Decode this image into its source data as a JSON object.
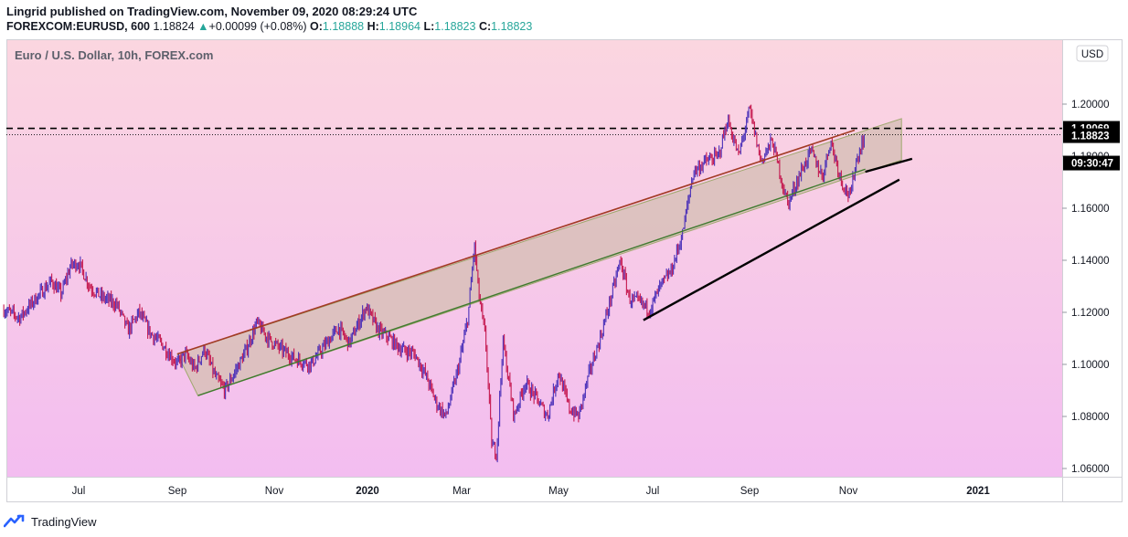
{
  "header": {
    "published": "Lingrid published on TradingView.com, November 09, 2020 08:29:24 UTC",
    "symbol": "FOREXCOM:EURUSD, 600",
    "last": "1.18824",
    "change": "+0.00099 (+0.08%)",
    "o_label": "O:",
    "o_value": "1.18888",
    "h_label": "H:",
    "h_value": "1.18964",
    "l_label": "L:",
    "l_value": "1.18823",
    "c_label": "C:",
    "c_value": "1.18823"
  },
  "chart_title": "Euro / U.S. Dollar, 10h, FOREX.com",
  "currency_label": "USD",
  "footer": {
    "brand": "TradingView"
  },
  "colors": {
    "bg_top": "#fbd6e0",
    "bg_bottom": "#f3bdf0",
    "candle_up": "#4a2fb8",
    "candle_down": "#c4174e",
    "channel_fill": "#d8c0b8",
    "channel_top": "#a23a24",
    "channel_bottom": "#3f7a2e",
    "trendline": "#000000",
    "price_tag": "#000000"
  },
  "chart_data": {
    "type": "line",
    "title": "Euro / U.S. Dollar, 10h, FOREX.com",
    "ylim": [
      1.056,
      1.214
    ],
    "y_ticks": [
      1.06,
      1.08,
      1.1,
      1.12,
      1.14,
      1.16,
      1.18,
      1.2
    ],
    "y_tick_labels": [
      "1.06000",
      "1.08000",
      "1.10000",
      "1.12000",
      "1.14000",
      "1.16000",
      "1.18000",
      "1.20000"
    ],
    "x_ticks": [
      "Jul",
      "Sep",
      "Nov",
      "2020",
      "Mar",
      "May",
      "Jul",
      "Sep",
      "Nov",
      "2021"
    ],
    "x_tick_dates": [
      "2019-07-01",
      "2019-09-01",
      "2019-11-01",
      "2020-01-01",
      "2020-03-01",
      "2020-05-01",
      "2020-07-01",
      "2020-09-01",
      "2020-11-01",
      "2021-01-01"
    ],
    "xlim": [
      "2019-05-15",
      "2021-03-01"
    ],
    "series": [
      {
        "values": [
          [
            "2019-05-15",
            1.121
          ],
          [
            "2019-05-25",
            1.118
          ],
          [
            "2019-06-05",
            1.126
          ],
          [
            "2019-06-14",
            1.132
          ],
          [
            "2019-06-20",
            1.127
          ],
          [
            "2019-06-26",
            1.138
          ],
          [
            "2019-07-01",
            1.139
          ],
          [
            "2019-07-08",
            1.13
          ],
          [
            "2019-07-15",
            1.126
          ],
          [
            "2019-07-25",
            1.123
          ],
          [
            "2019-08-01",
            1.113
          ],
          [
            "2019-08-08",
            1.12
          ],
          [
            "2019-08-15",
            1.112
          ],
          [
            "2019-08-22",
            1.108
          ],
          [
            "2019-09-01",
            1.1
          ],
          [
            "2019-09-06",
            1.104
          ],
          [
            "2019-09-12",
            1.098
          ],
          [
            "2019-09-18",
            1.106
          ],
          [
            "2019-09-25",
            1.095
          ],
          [
            "2019-10-01",
            1.09
          ],
          [
            "2019-10-08",
            1.098
          ],
          [
            "2019-10-14",
            1.105
          ],
          [
            "2019-10-21",
            1.116
          ],
          [
            "2019-10-28",
            1.11
          ],
          [
            "2019-11-05",
            1.106
          ],
          [
            "2019-11-15",
            1.102
          ],
          [
            "2019-11-25",
            1.1
          ],
          [
            "2019-12-05",
            1.108
          ],
          [
            "2019-12-13",
            1.114
          ],
          [
            "2019-12-20",
            1.108
          ],
          [
            "2019-12-31",
            1.122
          ],
          [
            "2020-01-08",
            1.113
          ],
          [
            "2020-01-15",
            1.11
          ],
          [
            "2020-01-22",
            1.106
          ],
          [
            "2020-01-31",
            1.104
          ],
          [
            "2020-02-07",
            1.096
          ],
          [
            "2020-02-14",
            1.085
          ],
          [
            "2020-02-20",
            1.08
          ],
          [
            "2020-02-28",
            1.099
          ],
          [
            "2020-03-05",
            1.118
          ],
          [
            "2020-03-09",
            1.146
          ],
          [
            "2020-03-12",
            1.126
          ],
          [
            "2020-03-16",
            1.11
          ],
          [
            "2020-03-20",
            1.069
          ],
          [
            "2020-03-23",
            1.066
          ],
          [
            "2020-03-27",
            1.109
          ],
          [
            "2020-04-03",
            1.08
          ],
          [
            "2020-04-10",
            1.093
          ],
          [
            "2020-04-17",
            1.087
          ],
          [
            "2020-04-24",
            1.08
          ],
          [
            "2020-05-01",
            1.097
          ],
          [
            "2020-05-08",
            1.083
          ],
          [
            "2020-05-14",
            1.08
          ],
          [
            "2020-05-21",
            1.097
          ],
          [
            "2020-05-28",
            1.11
          ],
          [
            "2020-06-05",
            1.128
          ],
          [
            "2020-06-10",
            1.14
          ],
          [
            "2020-06-16",
            1.125
          ],
          [
            "2020-06-22",
            1.124
          ],
          [
            "2020-06-29",
            1.121
          ],
          [
            "2020-07-06",
            1.13
          ],
          [
            "2020-07-13",
            1.136
          ],
          [
            "2020-07-20",
            1.15
          ],
          [
            "2020-07-27",
            1.174
          ],
          [
            "2020-08-04",
            1.178
          ],
          [
            "2020-08-12",
            1.18
          ],
          [
            "2020-08-18",
            1.194
          ],
          [
            "2020-08-25",
            1.18
          ],
          [
            "2020-09-01",
            1.198
          ],
          [
            "2020-09-08",
            1.178
          ],
          [
            "2020-09-15",
            1.186
          ],
          [
            "2020-09-23",
            1.165
          ],
          [
            "2020-09-25",
            1.162
          ],
          [
            "2020-10-02",
            1.173
          ],
          [
            "2020-10-09",
            1.182
          ],
          [
            "2020-10-16",
            1.172
          ],
          [
            "2020-10-21",
            1.186
          ],
          [
            "2020-10-28",
            1.17
          ],
          [
            "2020-11-02",
            1.164
          ],
          [
            "2020-11-04",
            1.176
          ],
          [
            "2020-11-09",
            1.1888
          ]
        ]
      }
    ],
    "channel": {
      "upper": [
        [
          "2019-09-01",
          1.104
        ],
        [
          "2020-11-04",
          1.19
        ]
      ],
      "lower": [
        [
          "2019-09-14",
          1.088
        ],
        [
          "2020-11-09",
          1.175
        ]
      ],
      "shaded_extension_end": "2020-11-26"
    },
    "trendlines": [
      [
        [
          "2020-06-25",
          1.117
        ],
        [
          "2020-11-25",
          1.171
        ]
      ],
      [
        [
          "2020-11-09",
          1.174
        ],
        [
          "2020-12-01",
          1.179
        ]
      ]
    ],
    "horizontal_levels": [
      {
        "value": 1.19069,
        "style": "dashed",
        "label": "1.19069"
      },
      {
        "value": 1.18823,
        "style": "dotted",
        "label": "1.18823"
      }
    ],
    "countdown_label": "09:30:47",
    "grid": false,
    "legend": "none"
  }
}
